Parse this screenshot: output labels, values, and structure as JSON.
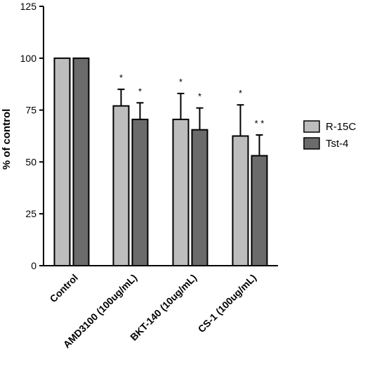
{
  "chart_data": {
    "type": "bar",
    "categories": [
      "Control",
      "AMD3100 (100ug/mL)",
      "BKT-140 (10ug/mL)",
      "CS-1 (100ug/mL)"
    ],
    "series": [
      {
        "name": "R-15C",
        "values": [
          100,
          77,
          70.5,
          62.5
        ],
        "errors": [
          0,
          8,
          12.5,
          15
        ],
        "significance": [
          "",
          "*",
          "*",
          "*"
        ],
        "color": "#bdbdbd"
      },
      {
        "name": "Tst-4",
        "values": [
          100,
          70.5,
          65.5,
          53
        ],
        "errors": [
          0,
          8,
          10.5,
          10
        ],
        "significance": [
          "",
          "*",
          "*",
          "* *"
        ],
        "color": "#6b6b6b"
      }
    ],
    "ylabel": "% of control",
    "ylim": [
      0,
      125
    ],
    "yticks": [
      0,
      25,
      50,
      75,
      100,
      125
    ],
    "legend_position": "right",
    "grid": false
  }
}
